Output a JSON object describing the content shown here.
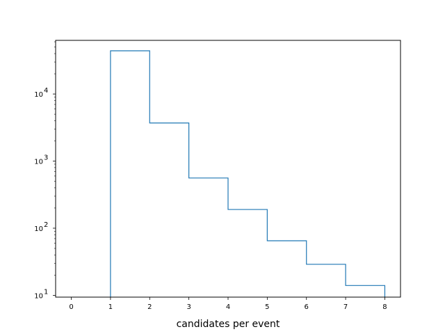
{
  "chart_data": {
    "type": "histogram",
    "title": "",
    "xlabel": "candidates per event",
    "ylabel": "",
    "yscale": "log",
    "bin_edges": [
      1,
      2,
      3,
      4,
      5,
      6,
      7,
      8
    ],
    "counts": [
      44000,
      3700,
      560,
      190,
      65,
      29,
      14
    ],
    "xlim": [
      -0.4,
      8.4
    ],
    "ylim": [
      9.4,
      63000
    ],
    "x_ticks": [
      "0",
      "1",
      "2",
      "3",
      "4",
      "5",
      "6",
      "7",
      "8"
    ],
    "y_ticks": [
      {
        "value": 10,
        "base": "10",
        "exp": "1"
      },
      {
        "value": 100,
        "base": "10",
        "exp": "2"
      },
      {
        "value": 1000,
        "base": "10",
        "exp": "3"
      },
      {
        "value": 10000,
        "base": "10",
        "exp": "4"
      }
    ],
    "color": "#1f77b4",
    "histtype": "step",
    "grid": false,
    "legend": "none"
  }
}
